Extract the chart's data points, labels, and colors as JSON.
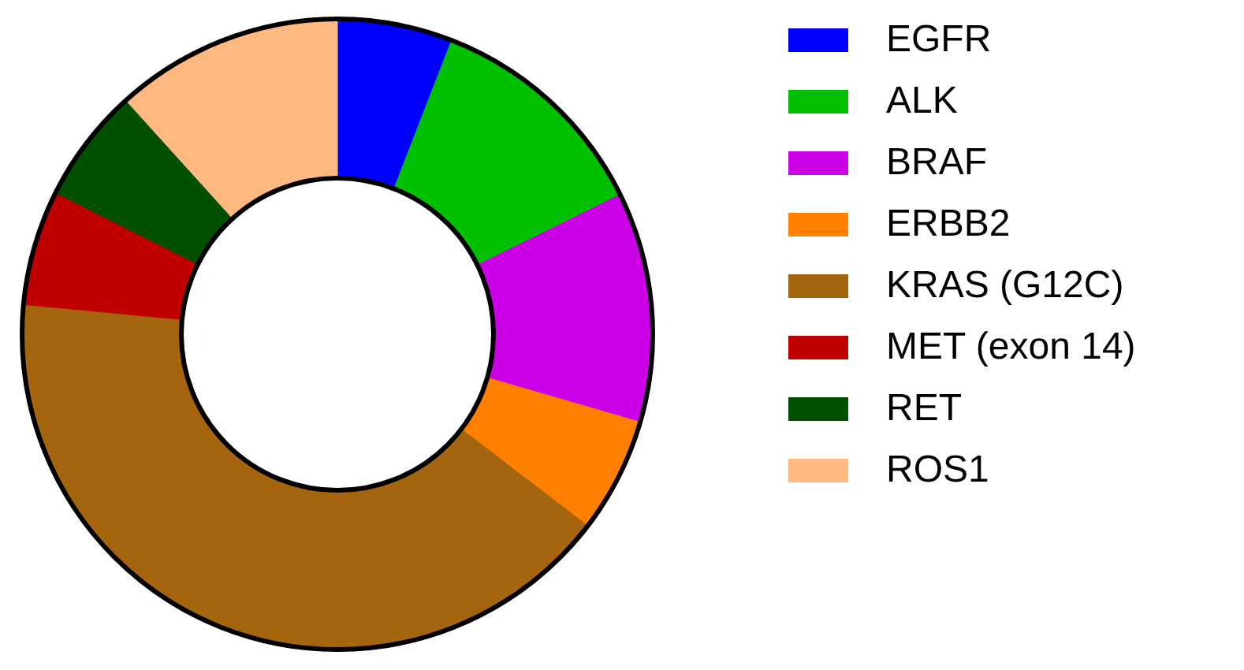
{
  "chart_data": {
    "type": "donut",
    "categories": [
      "EGFR",
      "ALK",
      "BRAF",
      "ERBB2",
      "KRAS (G12C)",
      "MET (exon 14)",
      "RET",
      "ROS1"
    ],
    "values": [
      5.9,
      11.8,
      11.8,
      5.9,
      41.1,
      5.9,
      5.9,
      11.7
    ],
    "colors": [
      "#0000ff",
      "#00c000",
      "#cc00e6",
      "#ff8000",
      "#a5650f",
      "#c00000",
      "#005000",
      "#ffb880"
    ],
    "legend": "right"
  }
}
